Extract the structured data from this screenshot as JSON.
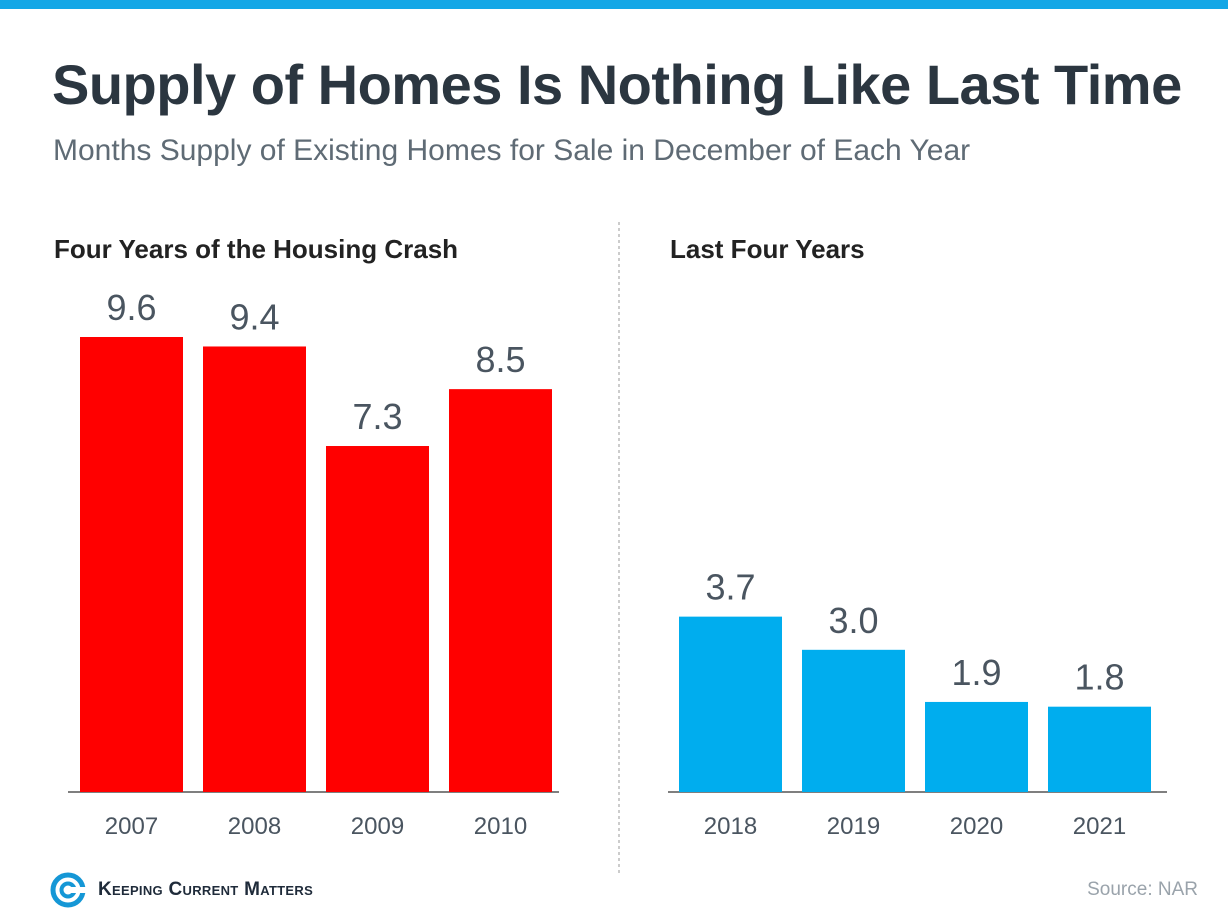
{
  "header": {
    "title": "Supply of Homes Is Nothing Like Last Time",
    "subtitle": "Months Supply of Existing Homes for Sale in December of Each Year"
  },
  "colors": {
    "accent_bar": "#14a7e6",
    "crash_bars": "#ff0000",
    "recent_bars": "#00adee",
    "axis": "#555555",
    "divider": "#999999"
  },
  "chart_data": [
    {
      "type": "bar",
      "title": "Four Years of the Housing Crash",
      "categories": [
        "2007",
        "2008",
        "2009",
        "2010"
      ],
      "values": [
        9.6,
        9.4,
        7.3,
        8.5
      ],
      "data_labels": [
        "9.6",
        "9.4",
        "7.3",
        "8.5"
      ],
      "color": "#ff0000",
      "xlabel": "",
      "ylabel": "",
      "ylim": [
        0,
        9.6
      ],
      "grid": false
    },
    {
      "type": "bar",
      "title": "Last Four Years",
      "categories": [
        "2018",
        "2019",
        "2020",
        "2021"
      ],
      "values": [
        3.7,
        3.0,
        1.9,
        1.8
      ],
      "data_labels": [
        "3.7",
        "3.0",
        "1.9",
        "1.8"
      ],
      "color": "#00adee",
      "xlabel": "",
      "ylabel": "",
      "ylim": [
        0,
        9.6
      ],
      "grid": false
    }
  ],
  "footer": {
    "logo_text": "Keeping Current Matters",
    "logo_icon": "kcm-swirl-icon",
    "source": "Source: NAR"
  }
}
